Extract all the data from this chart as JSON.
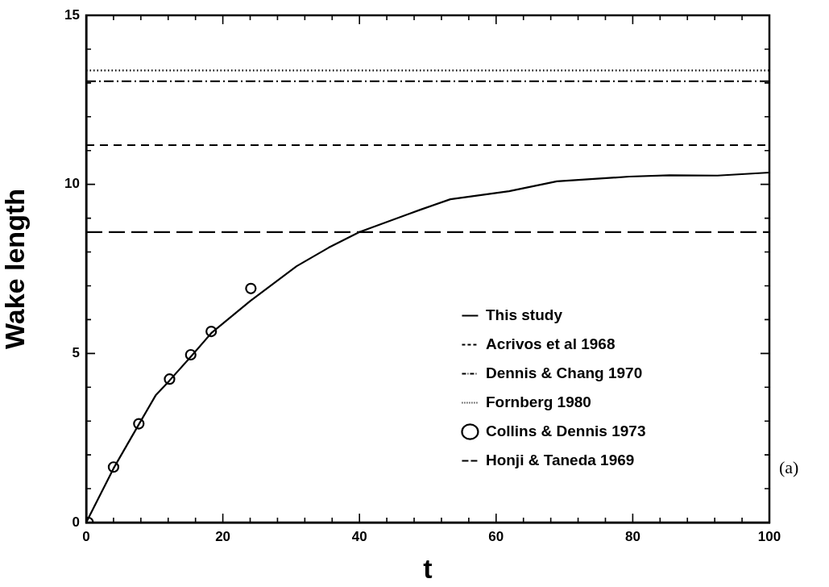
{
  "chart_data": {
    "type": "line",
    "xlabel": "t",
    "ylabel": "Wake length",
    "xlim": [
      0,
      100
    ],
    "ylim": [
      0,
      15
    ],
    "xticks": [
      0,
      {
        "value": 4,
        "label": null
      },
      {
        "value": 8,
        "label": null
      },
      {
        "value": 12,
        "label": null
      },
      {
        "value": 16,
        "label": null
      },
      20,
      {
        "value": 24,
        "label": null
      },
      {
        "value": 28,
        "label": null
      },
      {
        "value": 32,
        "label": null
      },
      {
        "value": 36,
        "label": null
      },
      40,
      {
        "value": 44,
        "label": null
      },
      {
        "value": 48,
        "label": null
      },
      {
        "value": 52,
        "label": null
      },
      {
        "value": 56,
        "label": null
      },
      60,
      {
        "value": 64,
        "label": null
      },
      {
        "value": 68,
        "label": null
      },
      {
        "value": 72,
        "label": null
      },
      {
        "value": 76,
        "label": null
      },
      80,
      {
        "value": 84,
        "label": null
      },
      {
        "value": 88,
        "label": null
      },
      {
        "value": 92,
        "label": null
      },
      {
        "value": 96,
        "label": null
      },
      100
    ],
    "yticks": [
      0,
      {
        "value": 1,
        "label": null
      },
      {
        "value": 2,
        "label": null
      },
      {
        "value": 3,
        "label": null
      },
      {
        "value": 4,
        "label": null
      },
      5,
      {
        "value": 6,
        "label": null
      },
      {
        "value": 7,
        "label": null
      },
      {
        "value": 8,
        "label": null
      },
      {
        "value": 9,
        "label": null
      },
      10,
      {
        "value": 11,
        "label": null
      },
      {
        "value": 12,
        "label": null
      },
      {
        "value": 13,
        "label": null
      },
      {
        "value": 14,
        "label": null
      },
      15
    ],
    "grid": false,
    "legend": "bottom right",
    "series": [
      {
        "name": "This study",
        "type": "line",
        "line_style": "solid",
        "marker": "none",
        "color": "#000000",
        "x": [
          0,
          4,
          7.7,
          10.2,
          12.2,
          15.3,
          18.3,
          24,
          30.8,
          35.5,
          40,
          48.9,
          53.3,
          61.9,
          68.9,
          79.5,
          85.4,
          92.4,
          100
        ],
        "values": [
          0,
          1.6,
          2.9,
          3.77,
          4.2,
          4.9,
          5.6,
          6.55,
          7.58,
          8.13,
          8.59,
          9.25,
          9.56,
          9.8,
          10.09,
          10.23,
          10.27,
          10.26,
          10.35
        ]
      },
      {
        "name": "Acrivos et al 1968",
        "type": "line",
        "line_style": "dashed",
        "marker": "none",
        "color": "#000000",
        "x": [
          0,
          100
        ],
        "values": [
          11.16,
          11.16
        ]
      },
      {
        "name": "Dennis & Chang 1970",
        "type": "line",
        "line_style": "dashdot",
        "marker": "none",
        "color": "#000000",
        "x": [
          0,
          100
        ],
        "values": [
          13.05,
          13.05
        ]
      },
      {
        "name": "Fornberg 1980",
        "type": "line",
        "line_style": "dotted",
        "marker": "none",
        "color": "#000000",
        "x": [
          0,
          100
        ],
        "values": [
          13.37,
          13.37
        ]
      },
      {
        "name": "Collins & Dennis 1973",
        "type": "scatter",
        "marker": "circle",
        "color": "#000000",
        "x": [
          0.3,
          4,
          7.7,
          12.2,
          15.3,
          18.3,
          24.1
        ],
        "values": [
          0,
          1.64,
          2.92,
          4.24,
          4.96,
          5.65,
          6.92
        ]
      },
      {
        "name": "Honji & Taneda 1969",
        "type": "line",
        "line_style": "longdash",
        "marker": "none",
        "color": "#000000",
        "x": [
          0,
          100
        ],
        "values": [
          8.59,
          8.59
        ]
      }
    ],
    "annotations": [
      "(a)"
    ]
  }
}
